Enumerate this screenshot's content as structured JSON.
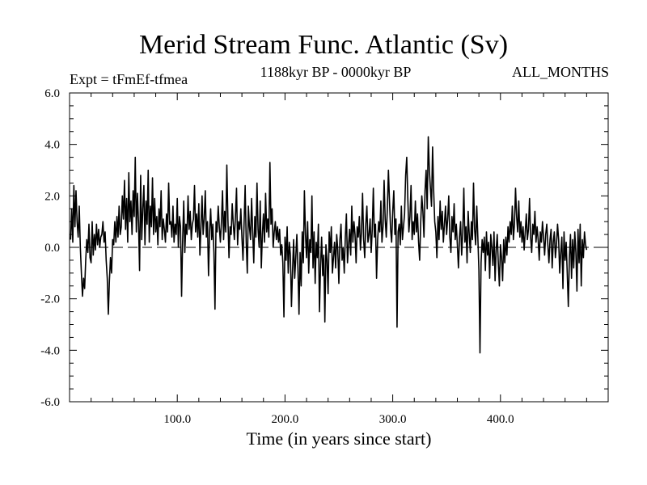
{
  "chart_data": {
    "type": "line",
    "title": "Merid Stream Func. Atlantic (Sv)",
    "subtitle": "1188kyr BP - 0000kyr BP",
    "left_label": "Expt = tFmEf-tfmea",
    "right_label": "ALL_MONTHS",
    "xlabel": "Time (in years since start)",
    "ylabel": "",
    "xlim": [
      0,
      500
    ],
    "ylim": [
      -6,
      6
    ],
    "x_ticks": [
      100,
      200,
      300,
      400
    ],
    "x_tick_labels": [
      "100.0",
      "200.0",
      "300.0",
      "400.0"
    ],
    "y_ticks": [
      -6,
      -4,
      -2,
      0,
      2,
      4,
      6
    ],
    "y_tick_labels": [
      "-6.0",
      "-4.0",
      "-2.0",
      "0.0",
      "2.0",
      "4.0",
      "6.0"
    ],
    "reference_line": 0,
    "grid": false,
    "series": [
      {
        "name": "Merid Stream Func. Atlantic",
        "x_start": 1,
        "x_step": 1,
        "values": [
          0.3,
          1.5,
          0.2,
          2.4,
          0.8,
          2.2,
          1.0,
          0.4,
          1.6,
          0.0,
          -1.0,
          -1.9,
          -1.2,
          -1.6,
          -0.5,
          0.3,
          -0.2,
          0.9,
          -0.4,
          -0.6,
          1.0,
          -0.3,
          0.5,
          -0.1,
          0.9,
          0.1,
          0.7,
          0.0,
          0.4,
          0.5,
          1.0,
          0.2,
          0.6,
          -0.5,
          -1.2,
          -2.6,
          -1.3,
          -0.4,
          -1.0,
          0.3,
          0.1,
          1.0,
          0.2,
          1.2,
          0.4,
          1.6,
          0.5,
          0.8,
          2.0,
          1.1,
          2.6,
          0.7,
          1.9,
          0.2,
          2.9,
          1.0,
          1.8,
          0.5,
          2.2,
          1.2,
          3.5,
          0.6,
          2.1,
          1.0,
          -0.9,
          2.8,
          0.3,
          1.5,
          2.4,
          0.1,
          1.8,
          0.9,
          3.0,
          0.2,
          1.6,
          0.8,
          2.7,
          0.5,
          1.9,
          0.6,
          1.2,
          0.1,
          1.5,
          0.8,
          2.2,
          0.3,
          1.1,
          0.7,
          0.2,
          1.3,
          0.6,
          2.5,
          0.9,
          1.0,
          0.4,
          1.6,
          0.2,
          0.9,
          0.5,
          1.9,
          0.0,
          1.2,
          0.8,
          -1.9,
          0.3,
          1.8,
          -0.2,
          0.9,
          0.5,
          2.0,
          0.7,
          1.4,
          0.3,
          0.9,
          1.1,
          2.4,
          0.6,
          1.3,
          0.4,
          1.7,
          -0.3,
          0.8,
          2.0,
          0.5,
          1.1,
          2.2,
          0.4,
          1.0,
          -1.1,
          0.6,
          1.5,
          0.3,
          0.9,
          -0.2,
          -2.4,
          1.0,
          0.6,
          1.6,
          0.8,
          0.2,
          1.0,
          2.2,
          0.3,
          1.4,
          0.6,
          3.2,
          1.1,
          -0.4,
          0.8,
          0.5,
          1.7,
          0.9,
          0.3,
          1.2,
          2.3,
          0.1,
          1.0,
          0.7,
          1.5,
          0.4,
          -0.5,
          0.9,
          2.4,
          0.2,
          -1.0,
          1.6,
          0.8,
          0.3,
          1.9,
          0.6,
          -0.6,
          1.2,
          0.4,
          2.5,
          0.7,
          0.0,
          1.8,
          -0.8,
          0.5,
          1.3,
          0.2,
          2.1,
          0.6,
          1.1,
          0.4,
          3.3,
          0.9,
          1.5,
          0.0,
          0.6,
          1.0,
          0.3,
          0.8,
          0.2,
          0.7,
          -0.3,
          0.1,
          -0.6,
          -2.7,
          0.4,
          -0.5,
          0.8,
          -1.0,
          0.2,
          -0.3,
          -2.3,
          -0.9,
          0.3,
          -1.2,
          -0.4,
          0.5,
          -0.8,
          -2.6,
          -0.2,
          -1.5,
          0.6,
          -0.6,
          2.2,
          0.5,
          -0.4,
          1.0,
          -1.0,
          0.3,
          -0.2,
          2.0,
          -0.8,
          0.6,
          -1.4,
          0.2,
          -0.4,
          0.9,
          -2.5,
          -0.7,
          0.4,
          -1.1,
          -0.3,
          -2.9,
          0.1,
          -0.5,
          -1.8,
          0.6,
          -0.2,
          0.8,
          -1.0,
          -0.4,
          0.2,
          -0.8,
          0.5,
          -0.1,
          -1.4,
          0.3,
          0.9,
          -0.5,
          0.0,
          -1.0,
          0.4,
          1.3,
          -0.6,
          0.1,
          0.7,
          -0.3,
          1.6,
          0.2,
          1.0,
          0.5,
          -0.6,
          0.8,
          0.4,
          1.2,
          -0.1,
          0.6,
          2.1,
          0.3,
          -0.4,
          0.9,
          1.6,
          0.2,
          0.5,
          1.1,
          -0.2,
          0.7,
          2.3,
          0.4,
          0.9,
          -1.2,
          0.3,
          1.0,
          0.6,
          1.8,
          0.2,
          0.8,
          2.6,
          1.1,
          0.4,
          1.5,
          3.0,
          1.8,
          0.7,
          0.2,
          1.4,
          2.2,
          0.5,
          1.1,
          -3.1,
          0.6,
          0.9,
          0.1,
          1.6,
          0.3,
          0.8,
          1.3,
          2.8,
          3.5,
          1.9,
          0.6,
          1.2,
          2.4,
          0.3,
          1.0,
          0.5,
          1.8,
          0.6,
          1.3,
          0.2,
          -0.5,
          1.0,
          2.0,
          1.4,
          0.4,
          2.2,
          3.0,
          1.5,
          4.3,
          3.0,
          2.3,
          1.6,
          3.9,
          2.2,
          1.0,
          0.6,
          -0.4,
          1.2,
          0.3,
          1.8,
          0.7,
          1.4,
          0.2,
          0.9,
          1.6,
          0.5,
          1.1,
          2.0,
          0.4,
          -0.2,
          1.2,
          0.6,
          1.7,
          0.3,
          0.9,
          0.1,
          -0.8,
          0.4,
          1.0,
          -0.3,
          0.6,
          2.3,
          0.2,
          0.8,
          -0.6,
          1.4,
          0.5,
          -0.2,
          1.0,
          0.3,
          2.5,
          0.7,
          0.1,
          1.6,
          0.4,
          -0.9,
          -4.1,
          -0.6,
          0.3,
          -0.2,
          0.4,
          -0.9,
          0.6,
          -0.3,
          0.2,
          -1.2,
          0.5,
          0.0,
          -0.7,
          0.6,
          -1.3,
          -0.1,
          0.5,
          -0.6,
          -1.5,
          0.1,
          -0.4,
          -1.3,
          0.3,
          -0.6,
          0.4,
          -0.3,
          0.8,
          0.2,
          1.0,
          0.5,
          1.6,
          0.3,
          0.9,
          2.3,
          1.2,
          0.6,
          1.8,
          0.4,
          1.0,
          0.2,
          0.8,
          -0.1,
          0.6,
          1.3,
          0.3,
          0.7,
          1.9,
          0.4,
          -0.2,
          0.9,
          0.5,
          1.4,
          0.2,
          0.8,
          0.3,
          -0.5,
          0.6,
          0.2,
          1.0,
          0.4,
          -0.3,
          0.5,
          0.9,
          0.1,
          -0.6,
          0.3,
          0.7,
          -0.8,
          0.2,
          0.6,
          -0.4,
          0.1,
          0.9,
          0.3,
          -1.0,
          -0.2,
          0.4,
          -1.6,
          0.6,
          -0.5,
          0.2,
          -1.0,
          -2.3,
          -0.4,
          0.5,
          -1.2,
          0.3,
          -0.8,
          0.6,
          -0.2,
          -1.7,
          0.7,
          -0.6,
          0.9,
          -1.5,
          0.3,
          -0.4,
          0.6,
          0.1,
          -0.1
        ]
      }
    ]
  }
}
